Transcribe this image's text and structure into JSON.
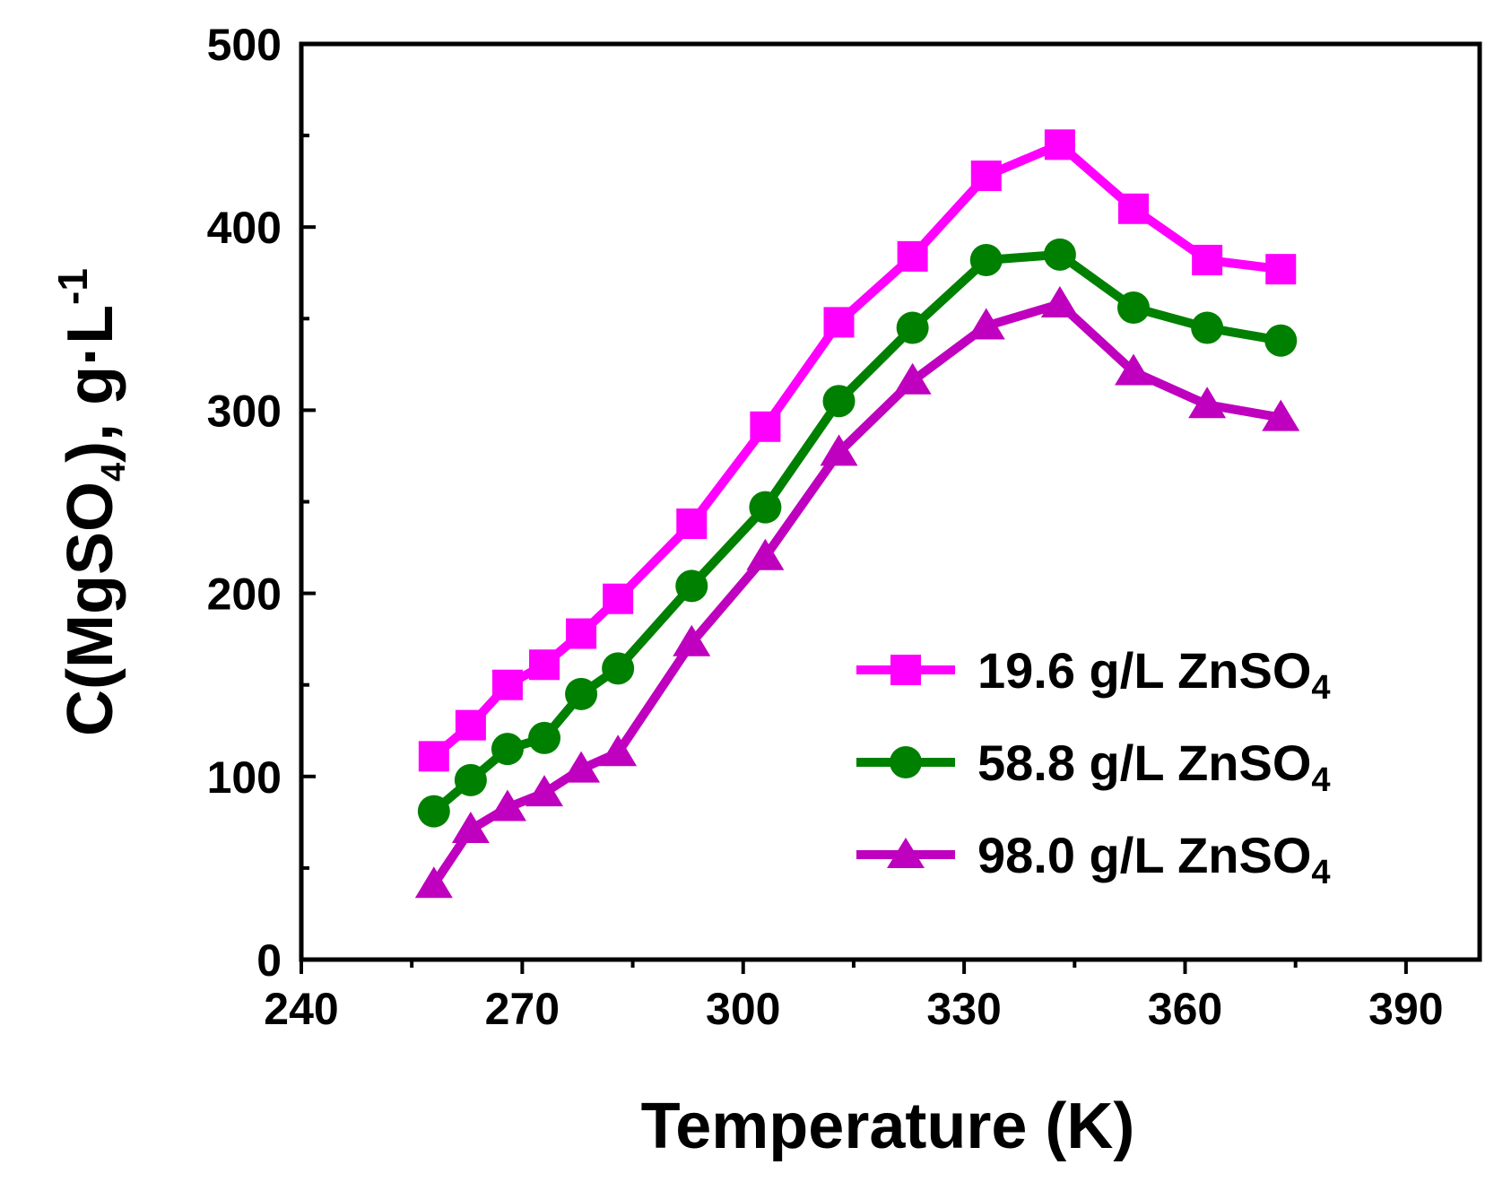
{
  "chart_data": {
    "type": "line",
    "title": "",
    "xlabel": "Temperature (K)",
    "ylabel": {
      "prefix": "C(MgSO",
      "subscript": "4",
      "suffix": "), g·L",
      "superscript": "-1"
    },
    "xlim": [
      240,
      400
    ],
    "ylim": [
      0,
      500
    ],
    "xticks": [
      240,
      270,
      300,
      330,
      360,
      390
    ],
    "yticks": [
      0,
      100,
      200,
      300,
      400,
      500
    ],
    "grid": false,
    "legend_position": "right",
    "x": [
      258,
      263,
      268,
      273,
      278,
      283,
      293,
      303,
      313,
      323,
      333,
      343,
      353,
      363,
      373
    ],
    "series": [
      {
        "name": "19.6 g/L ZnSO4",
        "label_main": "19.6 g/L ZnSO",
        "label_sub": "4",
        "color": "#ff00ff",
        "marker": "square",
        "values": [
          111,
          128,
          150,
          161,
          178,
          197,
          238,
          291,
          348,
          384,
          428,
          445,
          410,
          382,
          377
        ]
      },
      {
        "name": "58.8 g/L ZnSO4",
        "label_main": "58.8 g/L ZnSO",
        "label_sub": "4",
        "color": "#008000",
        "marker": "circle",
        "values": [
          81,
          98,
          115,
          121,
          145,
          159,
          204,
          247,
          305,
          345,
          382,
          385,
          356,
          345,
          338
        ]
      },
      {
        "name": "98.0 g/L ZnSO4",
        "label_main": "98.0 g/L ZnSO",
        "label_sub": "4",
        "color": "#bf00bf",
        "marker": "triangle",
        "values": [
          41,
          71,
          83,
          91,
          104,
          113,
          173,
          220,
          277,
          316,
          346,
          358,
          321,
          303,
          296
        ]
      }
    ]
  }
}
